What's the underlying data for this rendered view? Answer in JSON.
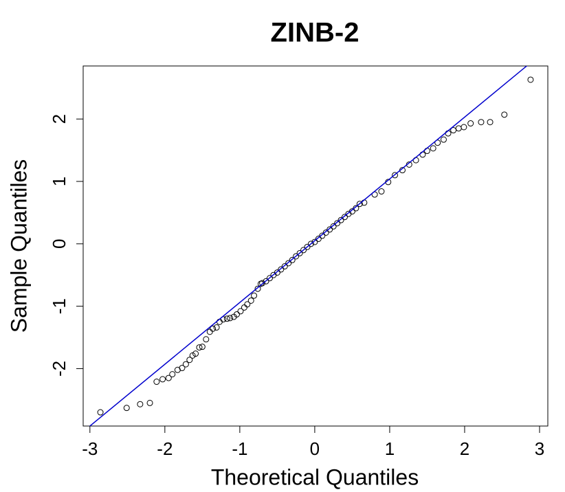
{
  "chart_data": {
    "type": "scatter",
    "title": "ZINB-2",
    "xlabel": "Theoretical Quantiles",
    "ylabel": "Sample Quantiles",
    "x": [
      -2.86,
      -2.51,
      -2.33,
      -2.2,
      -2.11,
      -2.03,
      -1.95,
      -1.9,
      -1.83,
      -1.77,
      -1.72,
      -1.67,
      -1.63,
      -1.59,
      -1.54,
      -1.5,
      -1.45,
      -1.4,
      -1.36,
      -1.31,
      -1.27,
      -1.22,
      -1.17,
      -1.13,
      -1.08,
      -1.04,
      -0.99,
      -0.94,
      -0.9,
      -0.85,
      -0.81,
      -0.76,
      -0.72,
      -0.7,
      -0.65,
      -0.6,
      -0.55,
      -0.5,
      -0.45,
      -0.4,
      -0.35,
      -0.3,
      -0.25,
      -0.2,
      -0.15,
      -0.1,
      -0.05,
      0,
      0.05,
      0.1,
      0.15,
      0.2,
      0.25,
      0.3,
      0.35,
      0.4,
      0.45,
      0.5,
      0.55,
      0.6,
      0.66,
      0.8,
      0.89,
      0.98,
      1.07,
      1.17,
      1.26,
      1.35,
      1.44,
      1.5,
      1.58,
      1.64,
      1.72,
      1.78,
      1.85,
      1.92,
      1.99,
      2.08,
      2.22,
      2.34,
      2.53,
      2.88
    ],
    "values": [
      -2.7,
      -2.63,
      -2.57,
      -2.55,
      -2.21,
      -2.17,
      -2.15,
      -2.09,
      -2.02,
      -1.99,
      -1.93,
      -1.86,
      -1.79,
      -1.76,
      -1.66,
      -1.65,
      -1.53,
      -1.41,
      -1.36,
      -1.34,
      -1.25,
      -1.21,
      -1.2,
      -1.19,
      -1.17,
      -1.13,
      -1.08,
      -1.02,
      -0.97,
      -0.91,
      -0.83,
      -0.72,
      -0.64,
      -0.63,
      -0.6,
      -0.55,
      -0.5,
      -0.46,
      -0.41,
      -0.36,
      -0.31,
      -0.26,
      -0.2,
      -0.15,
      -0.1,
      -0.05,
      0,
      0.03,
      0.08,
      0.13,
      0.18,
      0.23,
      0.28,
      0.33,
      0.38,
      0.43,
      0.48,
      0.52,
      0.57,
      0.64,
      0.66,
      0.79,
      0.84,
      0.99,
      1.1,
      1.18,
      1.27,
      1.34,
      1.43,
      1.49,
      1.53,
      1.62,
      1.67,
      1.77,
      1.82,
      1.85,
      1.87,
      1.93,
      1.95,
      1.95,
      2.07,
      2.63
    ],
    "color": "#000000",
    "reference_line": {
      "intercept": 0.05,
      "slope": 0.99,
      "color": "#0000cd"
    },
    "xlim": [
      -3.09,
      3.11
    ],
    "ylim": [
      -2.92,
      2.85
    ],
    "xticks": [
      -3,
      -2,
      -1,
      0,
      1,
      2,
      3
    ],
    "yticks": [
      -2,
      -1,
      0,
      1,
      2
    ]
  }
}
